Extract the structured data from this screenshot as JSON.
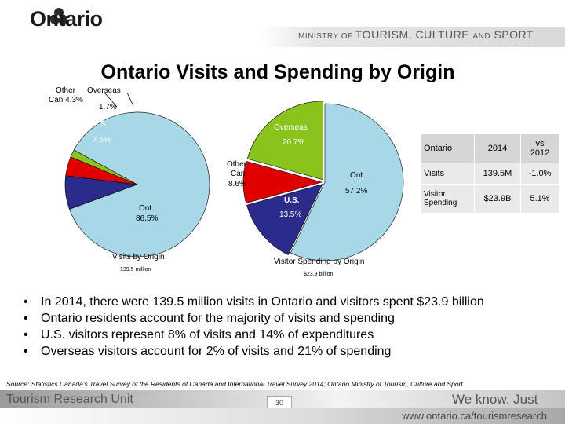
{
  "header": {
    "logo_name": "Ontario",
    "ministry_line": [
      "MINISTRY OF ",
      "TOURISM",
      ", CULTURE ",
      "AND",
      " SPORT"
    ]
  },
  "title": "Ontario Visits and Spending by Origin",
  "chart_data": [
    {
      "type": "pie",
      "title": "Visits by Origin",
      "subtitle": "139.5 million",
      "slices": [
        {
          "name": "Ont",
          "value": 86.5,
          "label": "Ont\n86.5%",
          "color": "#a8d8e8"
        },
        {
          "name": "U.S.",
          "value": 7.5,
          "label": "7.5%",
          "color": "#2b2b8c"
        },
        {
          "name": "Other Can",
          "value": 4.3,
          "label": "Other\nCan 4.3%",
          "color": "#e00000"
        },
        {
          "name": "Overseas",
          "value": 1.7,
          "label": "1.7%",
          "color": "#8ac31c"
        }
      ]
    },
    {
      "type": "pie",
      "title": "Visitor Spending by Origin",
      "subtitle": "$23.9 billion",
      "slices": [
        {
          "name": "Ont",
          "value": 57.2,
          "label": "57.2%",
          "color": "#a8d8e8"
        },
        {
          "name": "U.S.",
          "value": 13.5,
          "label": "13.5%",
          "color": "#2b2b8c"
        },
        {
          "name": "Other Can",
          "value": 8.6,
          "label": "8.6%",
          "color": "#e00000"
        },
        {
          "name": "Overseas",
          "value": 20.7,
          "label": "20.7%",
          "color": "#8ac31c"
        }
      ]
    }
  ],
  "pie1_labels": {
    "other_can": "Other",
    "other_can2": "Can 4.3%",
    "overseas": "Overseas",
    "overseas_pct": "1.7%",
    "us": "U.S.",
    "us_pct": "7.5%",
    "ont": "Ont",
    "ont_pct": "86.5%",
    "caption": "Visits by Origin",
    "subcaption": "139.5 million"
  },
  "pie2_labels": {
    "overseas": "Overseas",
    "overseas_pct": "20.7%",
    "other_can_1": "Other",
    "other_can_2": "Can",
    "other_can_pct": "8.6%",
    "ont": "Ont",
    "ont_pct": "57.2%",
    "us": "U.S.",
    "us_pct": "13.5%",
    "caption": "Visitor Spending by Origin",
    "subcaption": "$23.9 billion"
  },
  "table": {
    "headers": [
      "Ontario",
      "2014",
      "vs\n2012"
    ],
    "rows": [
      [
        "Visits",
        "139.5M",
        "-1.0%"
      ],
      [
        "Visitor\nSpending",
        "$23.9B",
        "5.1%"
      ]
    ]
  },
  "bullets": [
    "In 2014, there were 139.5 million visits in Ontario and visitors spent $23.9 billion",
    "Ontario residents account for the majority of visits and spending",
    "U.S. visitors represent 8% of visits and 14% of expenditures",
    "Overseas visitors account for 2% of visits and 21% of spending"
  ],
  "bullet_char": "•",
  "source": "Source: Statistics Canada’s Travel Survey of the Residents of Canada  and International Travel Survey 2014; Ontario Ministry of Tourism, Culture and  Sport",
  "footer": {
    "left": "Tourism Research Unit",
    "page": "30",
    "right": "We know. Just ask.",
    "url": "www.ontario.ca/tourismresearch"
  }
}
